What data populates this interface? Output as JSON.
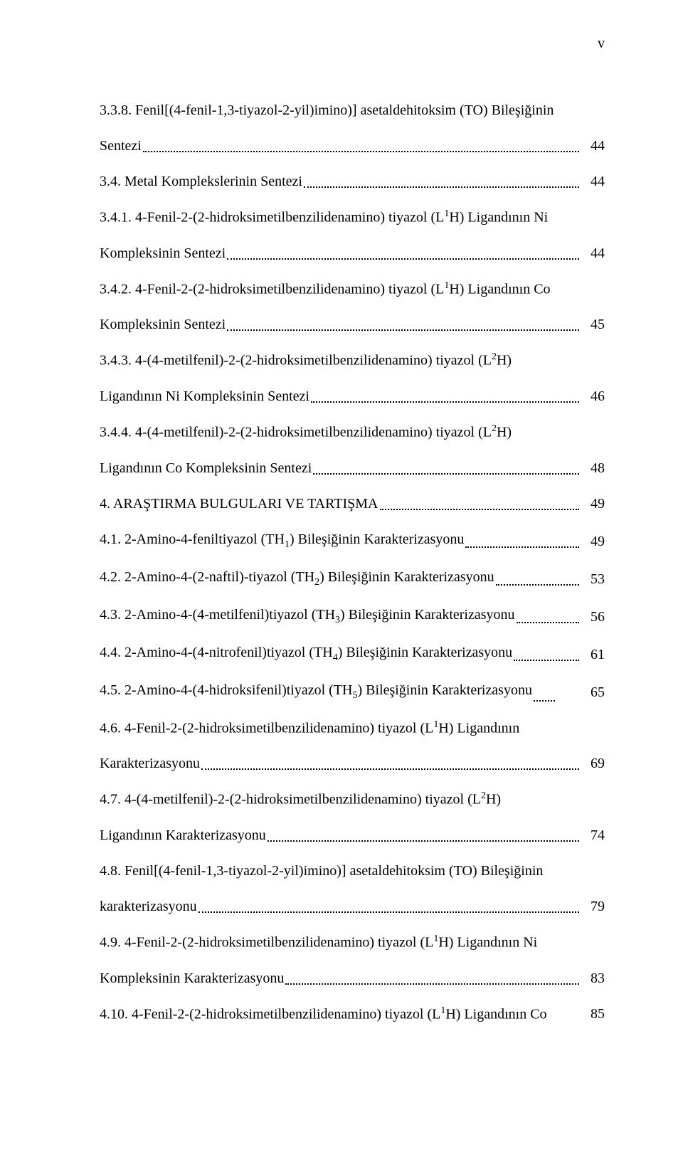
{
  "page_number_label": "v",
  "typography": {
    "font_family": "Times New Roman",
    "font_size_pt": 15,
    "text_color": "#000000",
    "background_color": "#ffffff",
    "line_spacing_multiplier": 2.0
  },
  "toc": {
    "entries": [
      {
        "lines": [
          "3.3.8. Fenil[(4-fenil-1,3-tiyazol-2-yil)imino)] asetaldehitoksim (TO) Bileşiğinin"
        ],
        "last_line": "Sentezi",
        "page": "44"
      },
      {
        "lines": [],
        "last_line": "3.4. Metal Komplekslerinin Sentezi",
        "page": "44"
      },
      {
        "lines": [
          "3.4.1. 4-Fenil-2-(2-hidroksimetilbenzilidenamino) tiyazol (L¹H) Ligandının Ni"
        ],
        "last_line": "Kompleksinin Sentezi",
        "page": "44"
      },
      {
        "lines": [
          "3.4.2. 4-Fenil-2-(2-hidroksimetilbenzilidenamino) tiyazol (L¹H) Ligandının Co"
        ],
        "last_line": "Kompleksinin Sentezi",
        "page": "45"
      },
      {
        "lines": [
          "3.4.3. 4-(4-metilfenil)-2-(2-hidroksimetilbenzilidenamino) tiyazol (L²H)"
        ],
        "last_line": "Ligandının Ni Kompleksinin Sentezi",
        "page": "46"
      },
      {
        "lines": [
          "3.4.4. 4-(4-metilfenil)-2-(2-hidroksimetilbenzilidenamino) tiyazol (L²H)"
        ],
        "last_line": "Ligandının Co Kompleksinin Sentezi",
        "page": "48"
      },
      {
        "lines": [],
        "last_line": "4. ARAŞTIRMA BULGULARI VE TARTIŞMA",
        "page": "49"
      },
      {
        "lines": [],
        "last_line": "4.1. 2-Amino-4-feniltiyazol (TH₁) Bileşiğinin Karakterizasyonu",
        "page": "49"
      },
      {
        "lines": [],
        "last_line": "4.2. 2-Amino-4-(2-naftil)-tiyazol (TH₂) Bileşiğinin Karakterizasyonu",
        "page": "53"
      },
      {
        "lines": [],
        "last_line": "4.3. 2-Amino-4-(4-metilfenil)tiyazol (TH₃) Bileşiğinin Karakterizasyonu",
        "page": "56"
      },
      {
        "lines": [],
        "last_line": "4.4. 2-Amino-4-(4-nitrofenil)tiyazol (TH₄) Bileşiğinin Karakterizasyonu",
        "page": "61"
      },
      {
        "lines": [],
        "last_line": "4.5. 2-Amino-4-(4-hidroksifenil)tiyazol (TH₅)  Bileşiğinin Karakterizasyonu",
        "page": "65",
        "short_dots": true
      },
      {
        "lines": [
          "4.6. 4-Fenil-2-(2-hidroksimetilbenzilidenamino) tiyazol (L¹H) Ligandının"
        ],
        "last_line": "Karakterizasyonu",
        "page": "69"
      },
      {
        "lines": [
          "4.7. 4-(4-metilfenil)-2-(2-hidroksimetilbenzilidenamino) tiyazol (L²H)"
        ],
        "last_line": "Ligandının Karakterizasyonu",
        "page": "74"
      },
      {
        "lines": [
          "4.8. Fenil[(4-fenil-1,3-tiyazol-2-yil)imino)] asetaldehitoksim (TO) Bileşiğinin"
        ],
        "last_line": "karakterizasyonu",
        "page": "79"
      },
      {
        "lines": [
          "4.9. 4-Fenil-2-(2-hidroksimetilbenzilidenamino) tiyazol (L¹H) Ligandının Ni"
        ],
        "last_line": "Kompleksinin Karakterizasyonu",
        "page": "83"
      },
      {
        "lines": [],
        "last_line": "4.10. 4-Fenil-2-(2-hidroksimetilbenzilidenamino) tiyazol (L¹H) Ligandının Co",
        "page": "85",
        "no_dots": true
      }
    ]
  }
}
